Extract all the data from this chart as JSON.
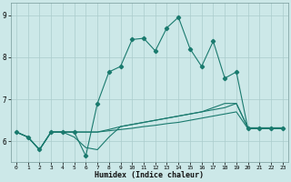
{
  "xlabel": "Humidex (Indice chaleur)",
  "ylabel": "",
  "bg_color": "#cce8e8",
  "line_color": "#1a7a6e",
  "grid_color": "#aacccc",
  "xlim": [
    -0.5,
    23.5
  ],
  "ylim": [
    5.5,
    9.3
  ],
  "xticks": [
    0,
    1,
    2,
    3,
    4,
    5,
    6,
    7,
    8,
    9,
    10,
    11,
    12,
    13,
    14,
    15,
    16,
    17,
    18,
    19,
    20,
    21,
    22,
    23
  ],
  "yticks": [
    6,
    7,
    8,
    9
  ],
  "line_main_x": [
    0,
    1,
    2,
    3,
    4,
    5,
    6,
    7,
    8,
    9,
    10,
    11,
    12,
    13,
    14,
    15,
    16,
    17,
    18,
    19,
    20,
    21,
    22,
    23
  ],
  "line_main_y": [
    6.22,
    6.1,
    5.8,
    6.22,
    6.22,
    6.22,
    5.65,
    6.9,
    7.65,
    7.78,
    8.42,
    8.45,
    8.15,
    8.7,
    8.95,
    8.2,
    7.78,
    8.38,
    7.5,
    7.65,
    6.3,
    6.3,
    6.3,
    6.3
  ],
  "line_a_x": [
    0,
    1,
    2,
    3,
    4,
    5,
    6,
    7,
    8,
    9,
    10,
    11,
    12,
    13,
    14,
    15,
    16,
    17,
    18,
    19,
    20,
    21,
    22,
    23
  ],
  "line_a_y": [
    6.22,
    6.1,
    5.8,
    6.22,
    6.22,
    6.22,
    6.22,
    6.22,
    6.25,
    6.28,
    6.31,
    6.35,
    6.38,
    6.42,
    6.45,
    6.5,
    6.55,
    6.6,
    6.65,
    6.7,
    6.3,
    6.3,
    6.3,
    6.3
  ],
  "line_b_x": [
    0,
    1,
    2,
    3,
    4,
    5,
    6,
    7,
    8,
    9,
    10,
    11,
    12,
    13,
    14,
    15,
    16,
    17,
    18,
    19,
    20,
    21,
    22,
    23
  ],
  "line_b_y": [
    6.22,
    6.1,
    5.8,
    6.22,
    6.22,
    6.1,
    5.85,
    5.8,
    6.1,
    6.35,
    6.4,
    6.45,
    6.5,
    6.55,
    6.6,
    6.65,
    6.7,
    6.8,
    6.9,
    6.9,
    6.32,
    6.32,
    6.32,
    6.32
  ],
  "line_c_x": [
    0,
    1,
    2,
    3,
    4,
    5,
    6,
    7,
    8,
    9,
    10,
    11,
    12,
    13,
    14,
    15,
    16,
    17,
    18,
    19,
    20,
    21,
    22,
    23
  ],
  "line_c_y": [
    6.22,
    6.1,
    5.8,
    6.22,
    6.22,
    6.22,
    6.22,
    6.22,
    6.28,
    6.35,
    6.4,
    6.45,
    6.5,
    6.55,
    6.6,
    6.65,
    6.7,
    6.75,
    6.8,
    6.9,
    6.32,
    6.32,
    6.32,
    6.32
  ]
}
